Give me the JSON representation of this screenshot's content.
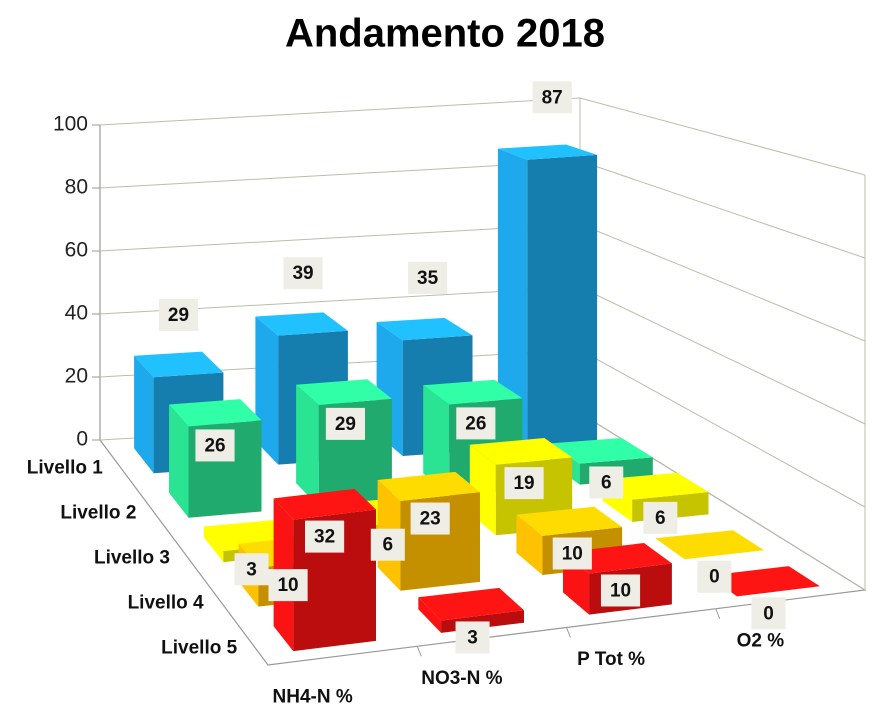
{
  "chart_data": {
    "type": "bar3d",
    "title": "Andamento 2018",
    "categories": [
      "NH4-N %",
      "NO3-N %",
      "P Tot %",
      "O2 %"
    ],
    "series": [
      {
        "name": "Livello 1",
        "color": "#1a9ad6",
        "values": [
          29,
          39,
          35,
          87
        ]
      },
      {
        "name": "Livello 2",
        "color": "#27cf86",
        "values": [
          26,
          29,
          26,
          6
        ]
      },
      {
        "name": "Livello 3",
        "color": "#f2ee00",
        "values": [
          3,
          6,
          19,
          6
        ]
      },
      {
        "name": "Livello 4",
        "color": "#f0b000",
        "values": [
          10,
          23,
          10,
          0
        ]
      },
      {
        "name": "Livello 5",
        "color": "#e41010",
        "values": [
          32,
          3,
          10,
          0
        ]
      }
    ],
    "ylim": [
      0,
      100
    ],
    "yticks": [
      0,
      20,
      40,
      60,
      80,
      100
    ],
    "grid": true
  }
}
